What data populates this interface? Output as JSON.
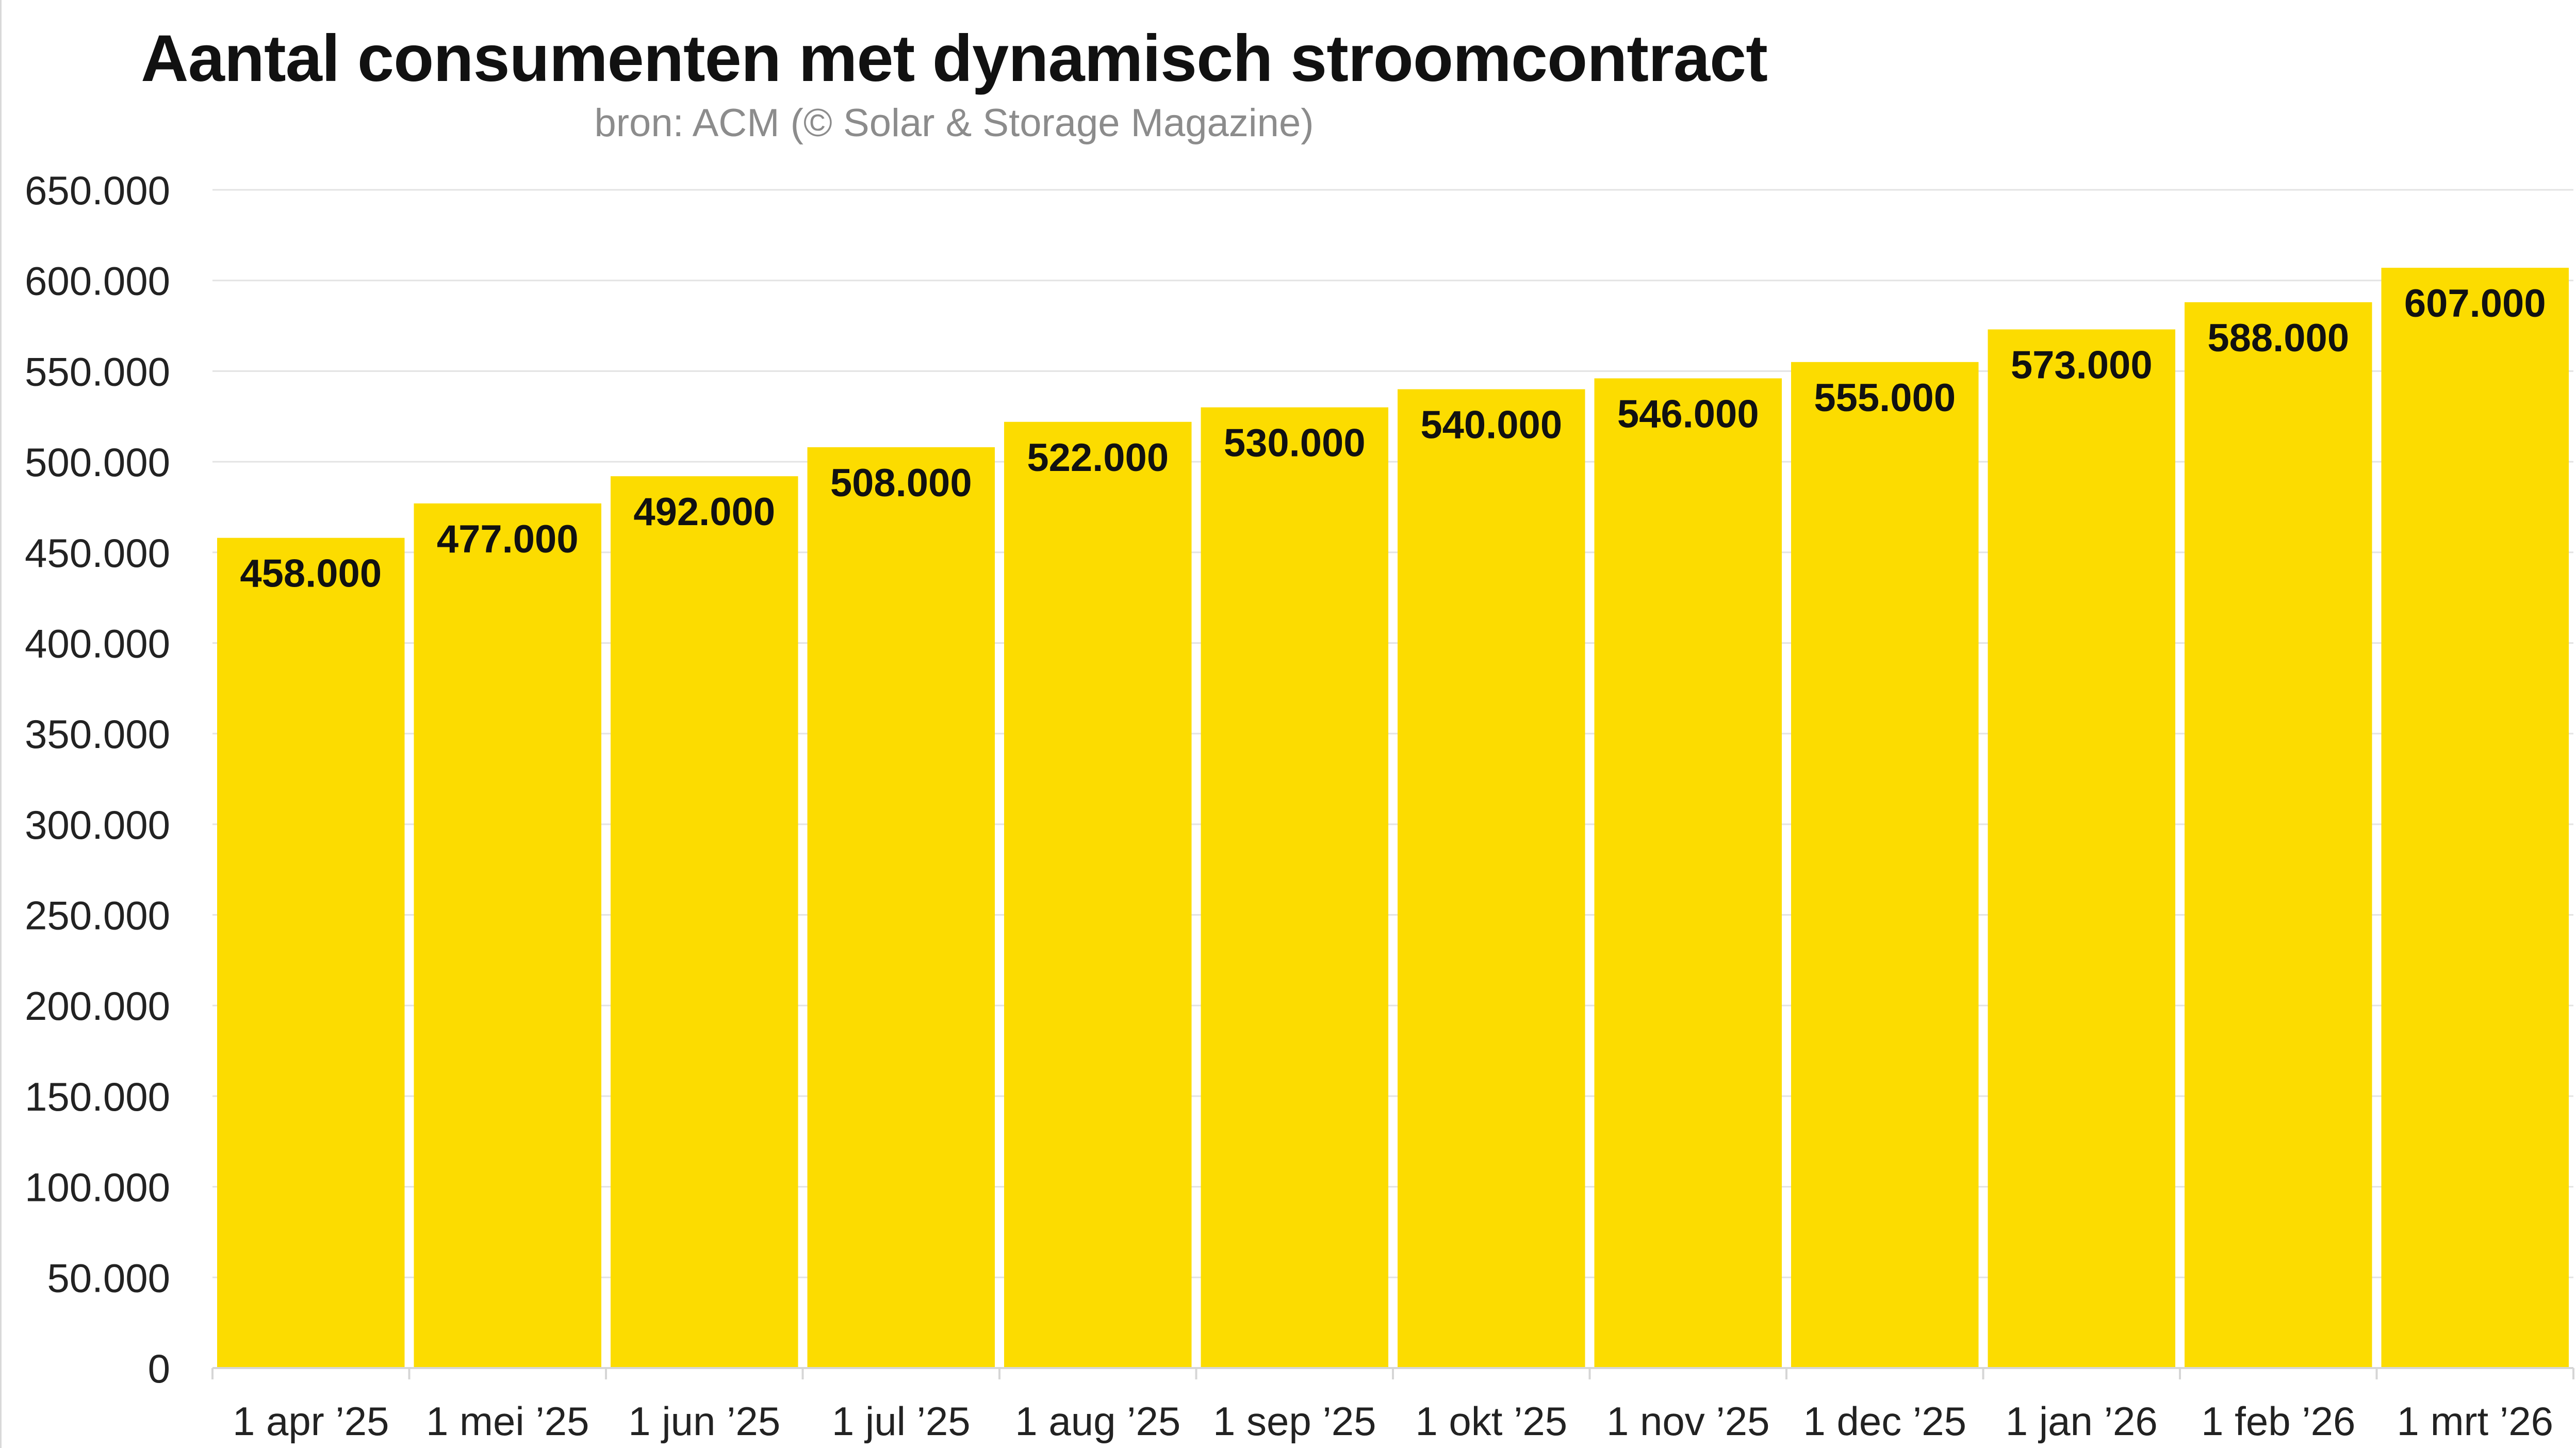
{
  "chart_data": {
    "type": "bar",
    "title": "Aantal consumenten met dynamisch stroomcontract",
    "subtitle": "bron: ACM (© Solar & Storage Magazine)",
    "xlabel": "",
    "ylabel": "",
    "ylim": [
      0,
      650000
    ],
    "yticks": [
      0,
      50000,
      100000,
      150000,
      200000,
      250000,
      300000,
      350000,
      400000,
      450000,
      500000,
      550000,
      600000,
      650000
    ],
    "ytick_labels": [
      "0",
      "50.000",
      "100.000",
      "150.000",
      "200.000",
      "250.000",
      "300.000",
      "350.000",
      "400.000",
      "450.000",
      "500.000",
      "550.000",
      "600.000",
      "650.000"
    ],
    "grid": true,
    "categories": [
      "1 apr ’25",
      "1 mei ’25",
      "1 jun ’25",
      "1 jul ’25",
      "1 aug ’25",
      "1 sep ’25",
      "1 okt ’25",
      "1 nov ’25",
      "1 dec ’25",
      "1 jan ’26",
      "1 feb ’26",
      "1 mrt ’26"
    ],
    "values": [
      458000,
      477000,
      492000,
      508000,
      522000,
      530000,
      540000,
      546000,
      555000,
      573000,
      588000,
      607000
    ],
    "value_labels": [
      "458.000",
      "477.000",
      "492.000",
      "508.000",
      "522.000",
      "530.000",
      "540.000",
      "546.000",
      "555.000",
      "573.000",
      "588.000",
      "607.000"
    ],
    "bar_color": "#FCDC00",
    "grid_color": "#e3e3e3"
  }
}
